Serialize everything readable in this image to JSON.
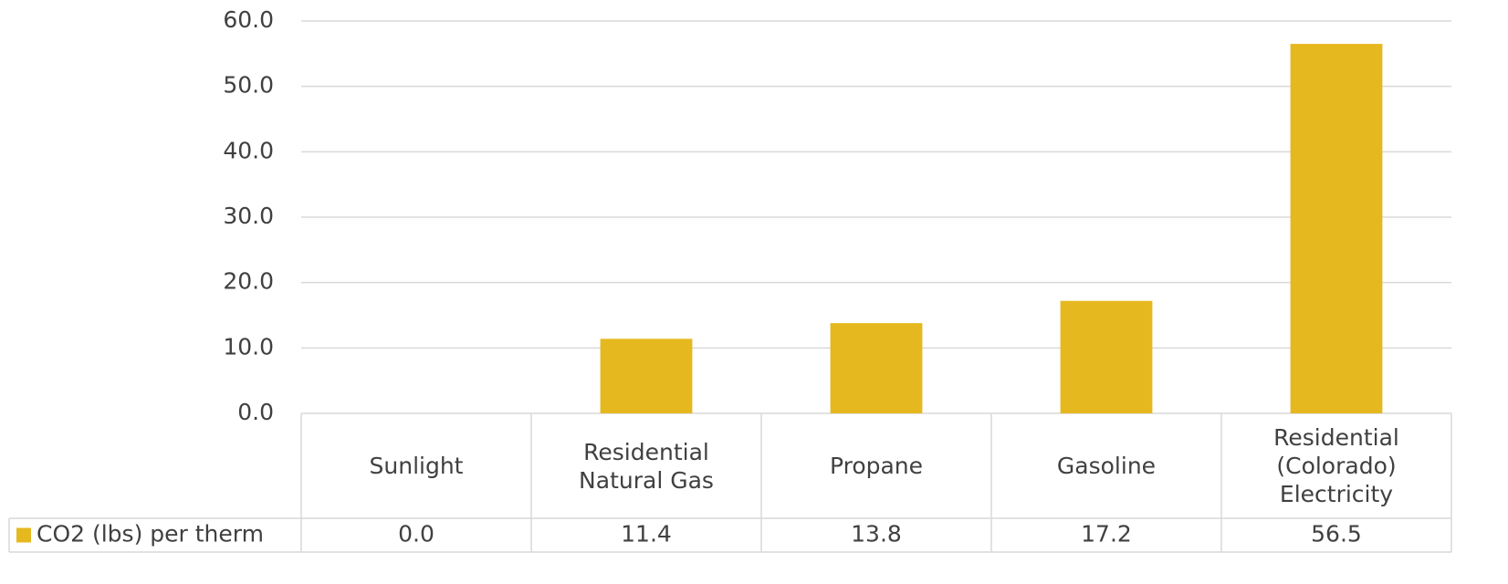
{
  "chart_data": {
    "type": "bar",
    "categories": [
      "Sunlight",
      "Residential Natural Gas",
      "Propane",
      "Gasoline",
      "Residential (Colorado) Electricity"
    ],
    "series": [
      {
        "name": "CO2 (lbs) per therm",
        "color": "#e6b820",
        "values": [
          0,
          11.4,
          13.8,
          17.2,
          56.5
        ],
        "value_labels": [
          "0.0",
          "11.4",
          "13.8",
          "17.2",
          "56.5"
        ]
      }
    ],
    "ylim": [
      0,
      60
    ],
    "yticks": [
      {
        "value": 0,
        "label": "0.0"
      },
      {
        "value": 10,
        "label": "10.0"
      },
      {
        "value": 20,
        "label": "20.0"
      },
      {
        "value": 30,
        "label": "30.0"
      },
      {
        "value": 40,
        "label": "40.0"
      },
      {
        "value": 50,
        "label": "50.0"
      },
      {
        "value": 60,
        "label": "60.0"
      }
    ],
    "grid": true
  }
}
